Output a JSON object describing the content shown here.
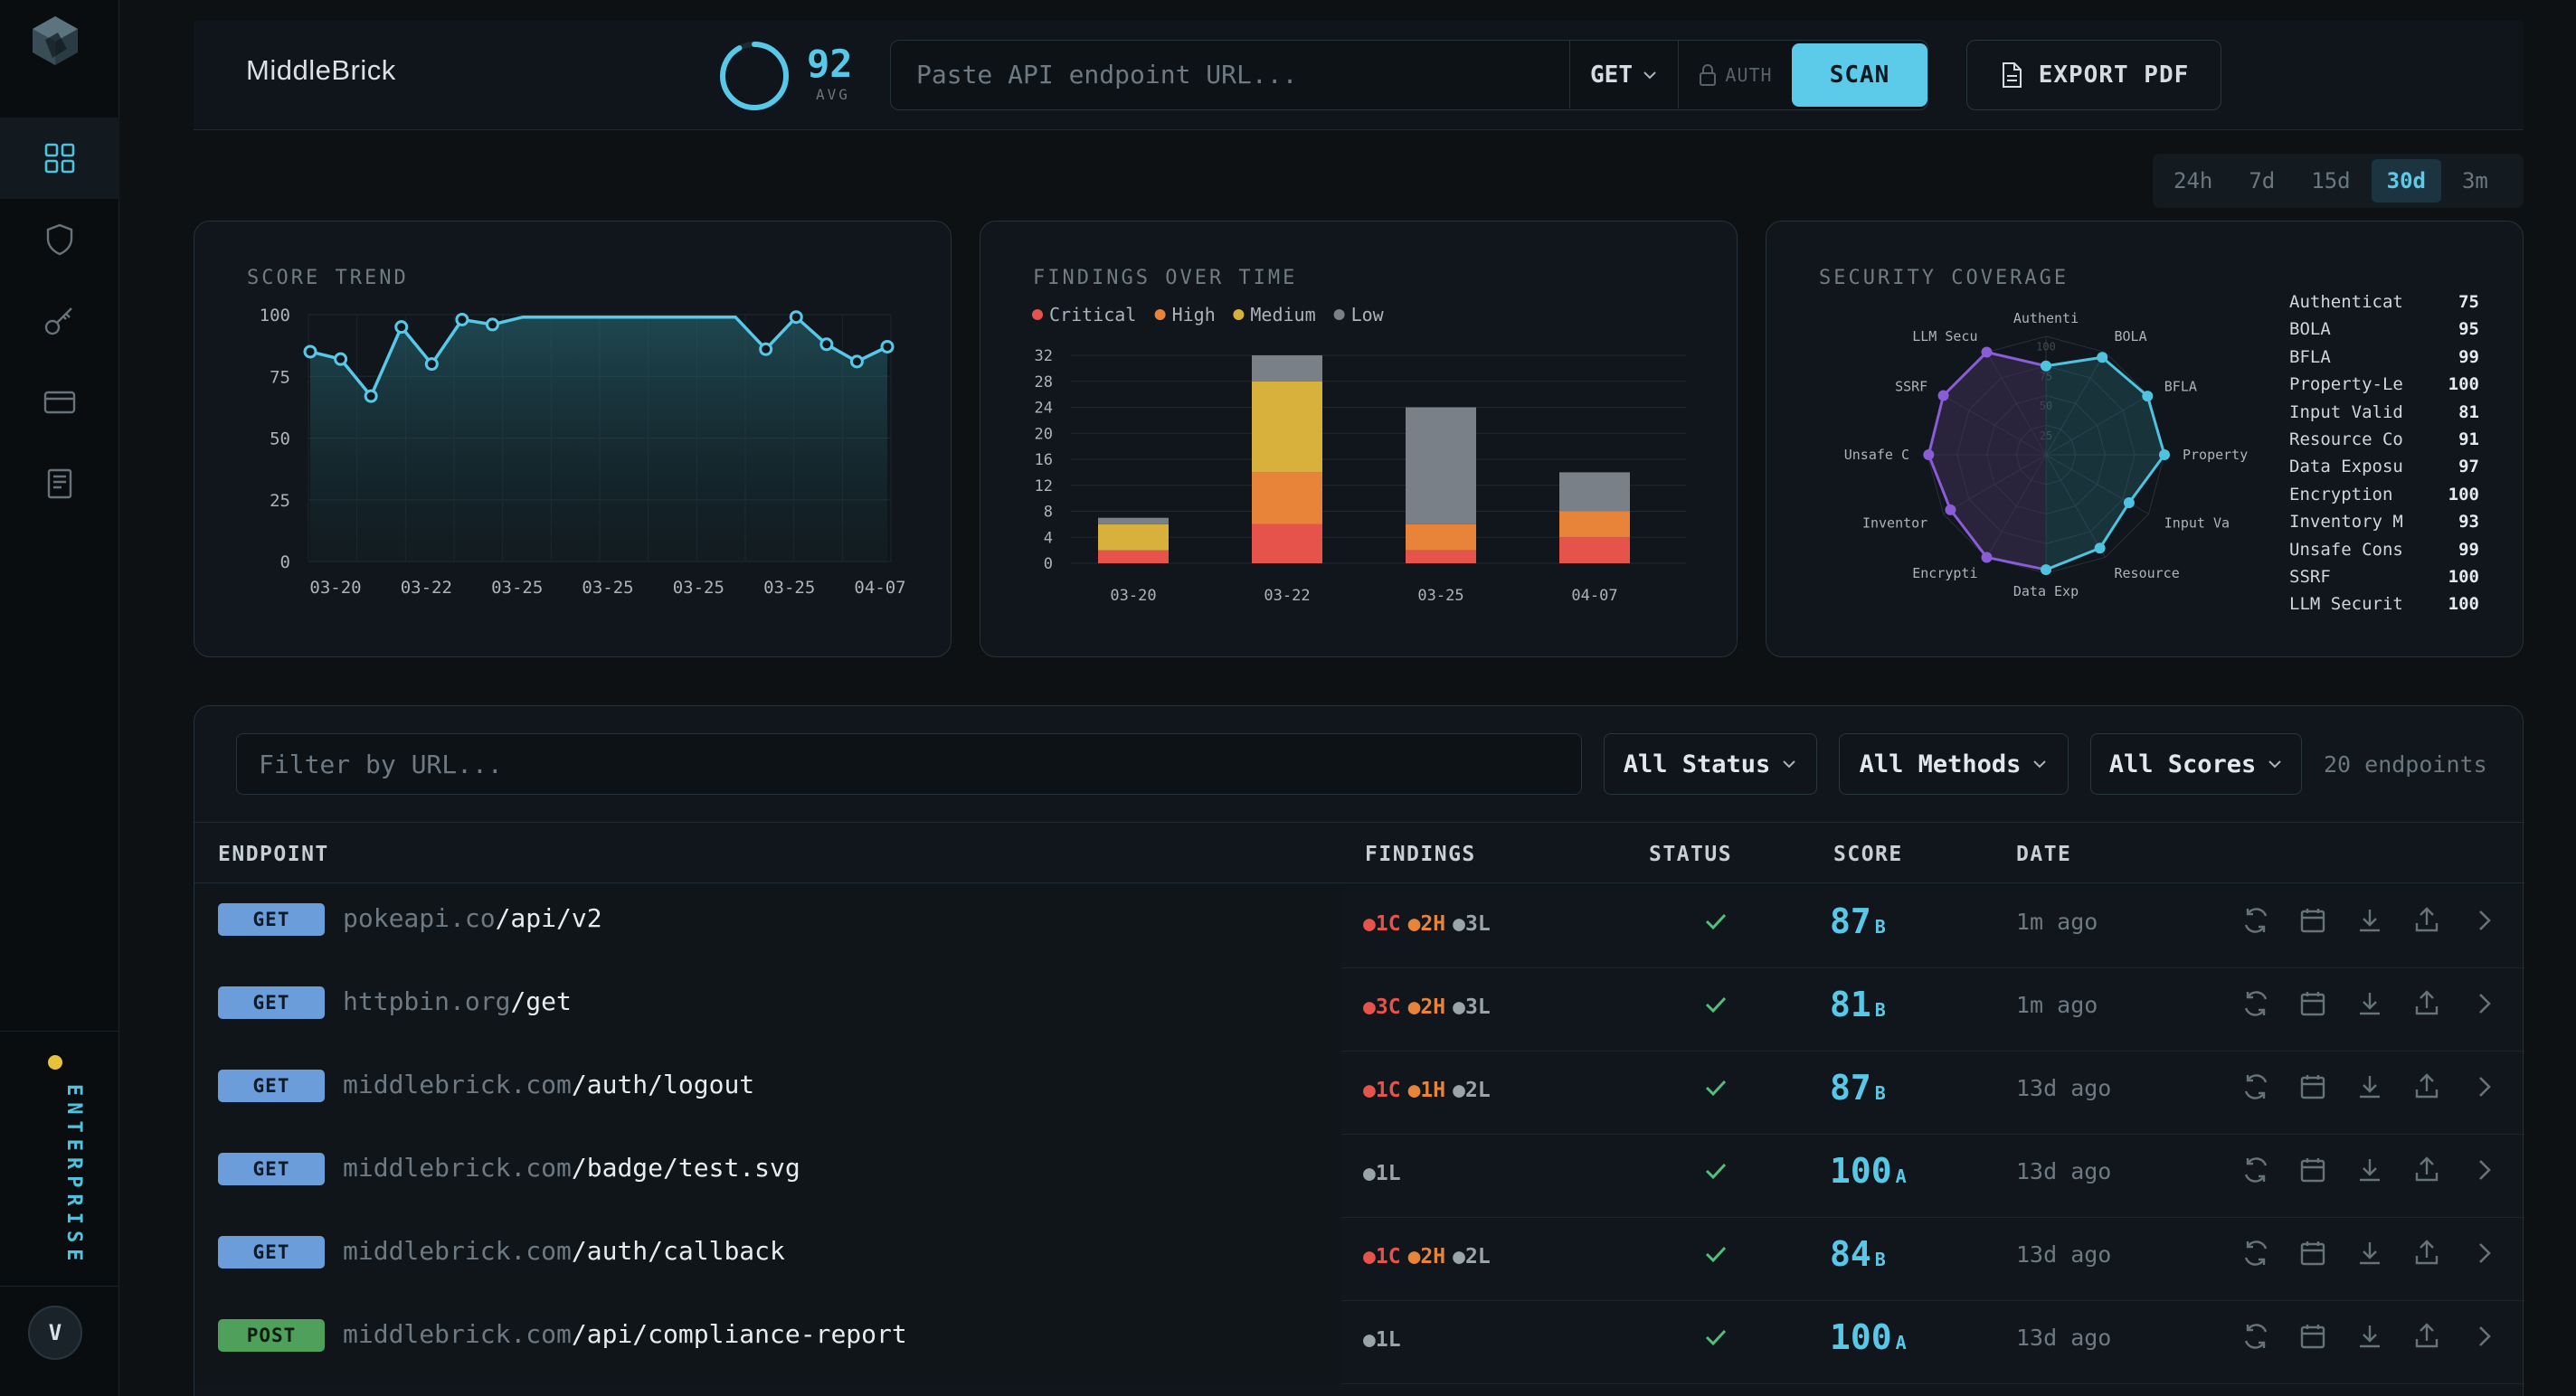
{
  "brand": "MiddleBrick",
  "score": {
    "value": "92",
    "label": "AVG",
    "ratio": 0.92
  },
  "scan": {
    "placeholder": "Paste API endpoint URL...",
    "method": "GET",
    "auth_label": "AUTH",
    "scan_label": "SCAN"
  },
  "export_label": "EXPORT PDF",
  "periods": [
    "24h",
    "7d",
    "15d",
    "30d",
    "3m"
  ],
  "active_period": "30d",
  "sidebar": {
    "items": [
      "dashboard-icon",
      "shield-icon",
      "key-icon",
      "card-icon",
      "book-icon"
    ],
    "plan": "ENTERPRISE",
    "avatar": "V",
    "accent": "#4ec3e0",
    "plan_dot": "#e8c23b"
  },
  "panels": {
    "score_trend": "SCORE TREND",
    "findings": "FINDINGS OVER TIME",
    "coverage": "SECURITY COVERAGE"
  },
  "chart_data": [
    {
      "type": "line",
      "title": "SCORE TREND",
      "x_tick_labels": [
        "03-20",
        "03-22",
        "03-25",
        "03-25",
        "03-25",
        "03-25",
        "04-07"
      ],
      "y_ticks": [
        0,
        25,
        50,
        75,
        100
      ],
      "ylim": [
        0,
        100
      ],
      "values": [
        85,
        82,
        67,
        95,
        80,
        98,
        96,
        99,
        99,
        99,
        99,
        99,
        99,
        99,
        99,
        86,
        99,
        88,
        81,
        87
      ],
      "color": "#58c8e8"
    },
    {
      "type": "bar",
      "title": "FINDINGS OVER TIME",
      "categories": [
        "03-20",
        "03-22",
        "03-25",
        "04-07"
      ],
      "y_ticks": [
        0,
        4,
        8,
        12,
        16,
        20,
        24,
        28,
        32
      ],
      "ylim": [
        0,
        32
      ],
      "legend": "top-left",
      "series": [
        {
          "name": "Critical",
          "color": "#e5534b",
          "values": [
            2,
            6,
            2,
            4
          ]
        },
        {
          "name": "High",
          "color": "#e8843a",
          "values": [
            0,
            8,
            4,
            4
          ]
        },
        {
          "name": "Medium",
          "color": "#d8b13c",
          "values": [
            4,
            14,
            0,
            0
          ]
        },
        {
          "name": "Low",
          "color": "#7a8087",
          "values": [
            1,
            4,
            18,
            6
          ]
        }
      ]
    },
    {
      "type": "radar",
      "title": "SECURITY COVERAGE",
      "grid_labels": [
        "100",
        "75",
        "50",
        "25"
      ],
      "axes": [
        "Authenti",
        "BOLA",
        "BFLA",
        "Property",
        "Input Va",
        "Resource",
        "Data Exp",
        "Encrypti",
        "Inventor",
        "Unsafe C",
        "SSRF",
        "LLM Secu"
      ],
      "values": [
        75,
        95,
        99,
        100,
        81,
        91,
        97,
        100,
        93,
        99,
        100,
        100
      ]
    }
  ],
  "coverage_list": [
    {
      "name": "Authenticat",
      "value": "75"
    },
    {
      "name": "BOLA",
      "value": "95"
    },
    {
      "name": "BFLA",
      "value": "99"
    },
    {
      "name": "Property-Le",
      "value": "100"
    },
    {
      "name": "Input Valid",
      "value": "81"
    },
    {
      "name": "Resource Co",
      "value": "91"
    },
    {
      "name": "Data Exposu",
      "value": "97"
    },
    {
      "name": "Encryption",
      "value": "100"
    },
    {
      "name": "Inventory M",
      "value": "93"
    },
    {
      "name": "Unsafe Cons",
      "value": "99"
    },
    {
      "name": "SSRF",
      "value": "100"
    },
    {
      "name": "LLM Securit",
      "value": "100"
    }
  ],
  "table": {
    "filter_placeholder": "Filter by URL...",
    "status_filter": "All Status",
    "method_filter": "All Methods",
    "score_filter": "All Scores",
    "count": "20 endpoints",
    "headers": {
      "endpoint": "ENDPOINT",
      "findings": "FINDINGS",
      "status": "STATUS",
      "score": "SCORE",
      "date": "DATE"
    },
    "rows": [
      {
        "method": "GET",
        "host": "pokeapi.co",
        "path": "/api/v2",
        "c": "1C",
        "h": "2H",
        "l": "3L",
        "score": "87",
        "grade": "B",
        "date": "1m ago"
      },
      {
        "method": "GET",
        "host": "httpbin.org",
        "path": "/get",
        "c": "3C",
        "h": "2H",
        "l": "3L",
        "score": "81",
        "grade": "B",
        "date": "1m ago"
      },
      {
        "method": "GET",
        "host": "middlebrick.com",
        "path": "/auth/logout",
        "c": "1C",
        "h": "1H",
        "l": "2L",
        "score": "87",
        "grade": "B",
        "date": "13d ago"
      },
      {
        "method": "GET",
        "host": "middlebrick.com",
        "path": "/badge/test.svg",
        "c": "",
        "h": "",
        "l": "1L",
        "score": "100",
        "grade": "A",
        "date": "13d ago"
      },
      {
        "method": "GET",
        "host": "middlebrick.com",
        "path": "/auth/callback",
        "c": "1C",
        "h": "2H",
        "l": "2L",
        "score": "84",
        "grade": "B",
        "date": "13d ago"
      },
      {
        "method": "POST",
        "host": "middlebrick.com",
        "path": "/api/compliance-report",
        "c": "",
        "h": "",
        "l": "1L",
        "score": "100",
        "grade": "A",
        "date": "13d ago"
      }
    ]
  }
}
